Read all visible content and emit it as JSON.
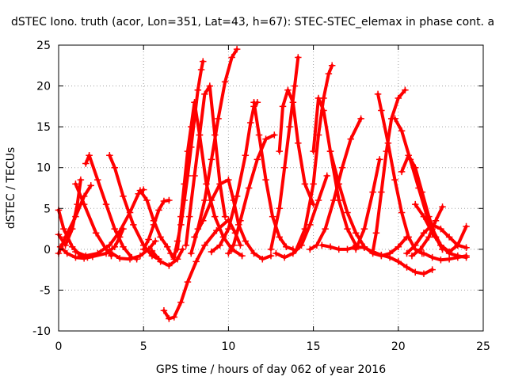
{
  "chart_data": {
    "type": "scatter",
    "title": "dSTEC Iono. truth (acor, Lon=351, Lat=43, h=67): STEC-STEC_elemax in phase cont. a",
    "xlabel": "GPS time / hours of day 062 of year 2016",
    "ylabel": "dSTEC  / TECUs",
    "xlim": [
      0,
      25
    ],
    "ylim": [
      -10,
      25
    ],
    "x_ticks": [
      0,
      5,
      10,
      15,
      20,
      25
    ],
    "y_ticks": [
      -10,
      -5,
      0,
      5,
      10,
      15,
      20,
      25
    ],
    "x_tick_labels": [
      "0",
      "5",
      "10",
      "15",
      "20",
      "25"
    ],
    "y_tick_labels": [
      "-10",
      "-5",
      "0",
      "5",
      "10",
      "15",
      "20",
      "25"
    ],
    "grid": true,
    "marker": "plus",
    "color": "#ff0000",
    "series": [
      {
        "x": [
          0.0,
          0.3,
          0.8,
          1.3,
          1.7
        ],
        "y": [
          4.8,
          2.5,
          0.3,
          -0.8,
          -1.0
        ]
      },
      {
        "x": [
          0.0,
          0.4,
          1.0,
          1.5,
          1.9
        ],
        "y": [
          -0.5,
          1.5,
          4.0,
          6.5,
          7.8
        ]
      },
      {
        "x": [
          0.1,
          0.5,
          1.0,
          1.5,
          2.0,
          2.8,
          3.3,
          3.6,
          3.8
        ],
        "y": [
          0.3,
          -0.5,
          -1.0,
          -1.1,
          -0.9,
          -0.5,
          0.3,
          1.5,
          2.5
        ]
      },
      {
        "x": [
          0.0,
          0.4,
          0.8,
          1.1,
          1.3
        ],
        "y": [
          1.8,
          0.5,
          2.5,
          5.5,
          8.5
        ]
      },
      {
        "x": [
          1.0,
          1.5,
          2.2,
          2.8,
          3.1
        ],
        "y": [
          8.0,
          5.5,
          2.0,
          0.0,
          -0.8
        ]
      },
      {
        "x": [
          1.6,
          1.8,
          2.3,
          2.8,
          3.3,
          3.8,
          4.3,
          4.6
        ],
        "y": [
          10.5,
          11.5,
          8.5,
          5.5,
          2.5,
          0.3,
          -1.0,
          -1.2
        ]
      },
      {
        "x": [
          1.0,
          1.6,
          2.3,
          3.0,
          3.6,
          4.2,
          4.7,
          5.0
        ],
        "y": [
          -0.3,
          -0.8,
          -0.5,
          0.5,
          2.2,
          4.5,
          6.8,
          7.3
        ]
      },
      {
        "x": [
          3.0,
          3.3,
          3.8,
          4.4,
          5.0,
          5.5,
          5.9
        ],
        "y": [
          11.5,
          10.0,
          6.5,
          3.0,
          0.5,
          -0.8,
          -1.2
        ]
      },
      {
        "x": [
          3.0,
          3.6,
          4.2,
          4.8,
          5.3,
          5.7
        ],
        "y": [
          -0.3,
          -1.1,
          -1.2,
          -0.8,
          0.0,
          1.0
        ]
      },
      {
        "x": [
          4.8,
          5.2,
          5.6,
          6.0,
          6.4,
          6.6,
          6.8
        ],
        "y": [
          7.2,
          6.0,
          3.5,
          1.5,
          0.3,
          -0.5,
          -1.2
        ]
      },
      {
        "x": [
          5.0,
          5.3,
          5.6,
          5.9,
          6.2,
          6.5
        ],
        "y": [
          0.0,
          1.2,
          3.0,
          4.8,
          5.9,
          6.0
        ]
      },
      {
        "x": [
          5.5,
          6.0,
          6.5,
          7.0,
          7.3
        ],
        "y": [
          -0.2,
          -1.5,
          -2.0,
          -1.2,
          0.0
        ]
      },
      {
        "x": [
          6.2,
          6.5,
          6.8,
          7.2,
          7.6,
          8.1,
          8.6,
          9.3,
          10.0,
          10.4,
          10.7
        ],
        "y": [
          -7.5,
          -8.5,
          -8.3,
          -6.5,
          -4.0,
          -1.5,
          0.5,
          2.3,
          3.6,
          2.0,
          0.5
        ]
      },
      {
        "x": [
          6.8,
          7.0,
          7.2,
          7.4,
          7.6,
          7.8,
          8.0,
          8.2,
          8.4,
          8.5
        ],
        "y": [
          -1.0,
          1.0,
          3.0,
          6.0,
          9.0,
          12.5,
          16.0,
          19.5,
          22.0,
          23.0
        ]
      },
      {
        "x": [
          7.0,
          7.2,
          7.4,
          7.6,
          7.8,
          8.0,
          8.3,
          8.7,
          9.2,
          9.7,
          10.2,
          10.8
        ],
        "y": [
          0.0,
          4.0,
          8.0,
          12.0,
          15.0,
          18.0,
          14.0,
          8.0,
          4.0,
          1.5,
          0.0,
          -0.8
        ]
      },
      {
        "x": [
          7.5,
          7.7,
          8.0,
          8.3,
          8.6,
          8.9,
          9.2,
          9.5,
          9.8
        ],
        "y": [
          0.5,
          4.0,
          9.0,
          14.0,
          19.0,
          20.0,
          14.0,
          8.0,
          4.0
        ]
      },
      {
        "x": [
          7.8,
          8.2,
          8.6,
          9.0,
          9.4,
          9.8,
          10.2,
          10.5
        ],
        "y": [
          -0.5,
          2.5,
          6.0,
          11.0,
          16.0,
          20.5,
          23.5,
          24.5
        ]
      },
      {
        "x": [
          8.0,
          8.5,
          9.0,
          9.5,
          10.0,
          10.3,
          10.6,
          11.0,
          11.5,
          12.0,
          12.5
        ],
        "y": [
          1.5,
          3.5,
          6.0,
          8.0,
          8.5,
          6.0,
          3.0,
          1.0,
          -0.5,
          -1.2,
          -0.8
        ]
      },
      {
        "x": [
          9.0,
          9.5,
          10.0,
          10.5,
          11.0,
          11.3,
          11.5,
          11.7
        ],
        "y": [
          -0.3,
          0.5,
          2.5,
          6.5,
          11.5,
          15.5,
          17.5,
          18.0
        ]
      },
      {
        "x": [
          10.0,
          10.3,
          10.7,
          11.2,
          11.7,
          12.2,
          12.7
        ],
        "y": [
          -0.5,
          0.5,
          3.5,
          7.5,
          11.0,
          13.5,
          14.0
        ]
      },
      {
        "x": [
          11.5,
          11.8,
          12.2,
          12.6,
          13.0,
          13.4,
          13.8
        ],
        "y": [
          18.0,
          14.0,
          8.5,
          4.0,
          1.5,
          0.3,
          0.0
        ]
      },
      {
        "x": [
          12.5,
          13.0,
          13.3,
          13.6,
          13.9,
          14.1
        ],
        "y": [
          0.0,
          5.0,
          10.0,
          15.0,
          20.0,
          23.5
        ]
      },
      {
        "x": [
          13.0,
          13.2,
          13.5,
          13.8,
          14.1,
          14.5,
          15.0
        ],
        "y": [
          12.0,
          17.5,
          19.5,
          18.0,
          13.0,
          8.0,
          5.5
        ]
      },
      {
        "x": [
          12.8,
          13.3,
          13.8,
          14.3,
          14.8,
          15.3,
          15.8
        ],
        "y": [
          -0.5,
          -1.0,
          -0.5,
          0.5,
          3.0,
          6.0,
          9.0
        ]
      },
      {
        "x": [
          14.0,
          14.5,
          15.0,
          15.3,
          15.6,
          15.9,
          16.1
        ],
        "y": [
          0.0,
          2.5,
          8.0,
          14.0,
          18.5,
          21.5,
          22.5
        ]
      },
      {
        "x": [
          15.0,
          15.3,
          15.6,
          16.0,
          16.5,
          17.0,
          17.5
        ],
        "y": [
          12.0,
          18.5,
          17.0,
          12.0,
          6.0,
          2.5,
          0.5
        ]
      },
      {
        "x": [
          14.8,
          15.2,
          15.7,
          16.2,
          16.7,
          17.2,
          17.8
        ],
        "y": [
          0.0,
          0.5,
          2.5,
          6.0,
          10.0,
          13.5,
          16.0
        ]
      },
      {
        "x": [
          15.5,
          16.0,
          16.5,
          17.0,
          17.5,
          18.0,
          18.5,
          19.0,
          19.5,
          20.0,
          20.5,
          21.0,
          21.5,
          22.0
        ],
        "y": [
          0.5,
          0.3,
          0.0,
          0.0,
          0.3,
          0.2,
          -0.3,
          -0.7,
          -1.0,
          -1.5,
          -2.2,
          -2.8,
          -3.0,
          -2.5
        ]
      },
      {
        "x": [
          16.0,
          16.5,
          17.0,
          17.5,
          18.0,
          18.5,
          19.0,
          19.5,
          20.0,
          20.5
        ],
        "y": [
          12.0,
          8.0,
          4.5,
          2.0,
          0.3,
          -0.5,
          -0.8,
          -0.5,
          0.3,
          1.5
        ]
      },
      {
        "x": [
          17.5,
          18.0,
          18.5,
          18.9
        ],
        "y": [
          0.0,
          2.5,
          7.0,
          11.0
        ]
      },
      {
        "x": [
          18.5,
          18.7,
          19.0,
          19.3,
          19.6,
          20.0,
          20.4
        ],
        "y": [
          -0.3,
          2.0,
          7.0,
          12.0,
          16.0,
          18.5,
          19.5
        ]
      },
      {
        "x": [
          18.8,
          19.0,
          19.4,
          19.8,
          20.2,
          20.6,
          21.0,
          21.4
        ],
        "y": [
          19.0,
          17.0,
          13.0,
          8.5,
          4.5,
          1.5,
          0.0,
          -0.5
        ]
      },
      {
        "x": [
          19.8,
          20.2,
          20.7,
          21.2,
          21.7,
          22.2,
          22.6
        ],
        "y": [
          16.0,
          14.5,
          11.0,
          7.5,
          4.0,
          1.5,
          0.0
        ]
      },
      {
        "x": [
          20.2,
          20.6,
          21.0,
          21.4,
          21.8,
          22.2,
          22.6
        ],
        "y": [
          9.5,
          11.5,
          10.0,
          7.0,
          4.0,
          1.5,
          0.0
        ]
      },
      {
        "x": [
          20.5,
          21.0,
          21.5,
          22.0,
          22.5,
          23.0,
          23.5,
          24.0
        ],
        "y": [
          -0.5,
          0.5,
          2.0,
          3.0,
          2.5,
          1.5,
          0.5,
          0.2
        ]
      },
      {
        "x": [
          21.5,
          22.0,
          22.5,
          23.0,
          23.5,
          24.0
        ],
        "y": [
          -0.5,
          -1.0,
          -1.3,
          -1.2,
          -1.0,
          -0.8
        ]
      },
      {
        "x": [
          21.0,
          21.5,
          22.0,
          22.5,
          23.0,
          23.5,
          24.0
        ],
        "y": [
          5.5,
          4.0,
          2.0,
          0.5,
          -0.3,
          0.5,
          2.8
        ]
      },
      {
        "x": [
          20.8,
          21.3,
          21.8,
          22.2,
          22.6
        ],
        "y": [
          -0.8,
          0.0,
          1.5,
          3.5,
          5.2
        ]
      },
      {
        "x": [
          22.0,
          22.5,
          23.0,
          23.5,
          24.0
        ],
        "y": [
          2.5,
          0.5,
          -0.5,
          -0.8,
          -1.0
        ]
      }
    ]
  }
}
